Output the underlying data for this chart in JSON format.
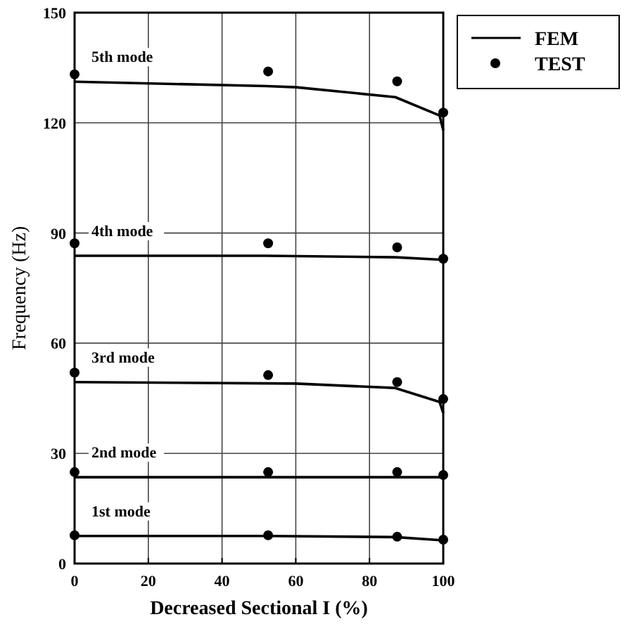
{
  "chart_data": {
    "type": "line",
    "xlabel": "Decreased Sectional I (%)",
    "ylabel": "Frequency (Hz)",
    "xlim": [
      0,
      100
    ],
    "ylim": [
      0,
      150
    ],
    "xticks": [
      0,
      20,
      40,
      60,
      80,
      100
    ],
    "yticks": [
      0,
      30,
      60,
      90,
      120,
      150
    ],
    "grid": true,
    "legend": "top right",
    "series": [
      {
        "name": "FEM",
        "color": "#000000",
        "marker": "none",
        "line_style": "solid",
        "x": [
          0,
          52,
          60,
          87,
          99,
          100
        ],
        "values": [
          131.2,
          130,
          129.7,
          127,
          122,
          118
        ]
      },
      {
        "color": "#000000",
        "marker": "none",
        "line_style": "solid",
        "x": [
          0,
          52,
          87,
          100
        ],
        "values": [
          83.8,
          83.8,
          83.4,
          82.7
        ]
      },
      {
        "color": "#000000",
        "marker": "none",
        "line_style": "solid",
        "x": [
          0,
          60,
          87,
          99,
          100
        ],
        "values": [
          49.4,
          49,
          47.8,
          44,
          41
        ]
      },
      {
        "color": "#000000",
        "marker": "none",
        "line_style": "solid",
        "x": [
          0,
          100
        ],
        "values": [
          23.5,
          23.5
        ]
      },
      {
        "color": "#000000",
        "marker": "none",
        "line_style": "solid",
        "x": [
          0,
          52,
          87,
          100
        ],
        "values": [
          7.5,
          7.5,
          7.2,
          6.3
        ]
      },
      {
        "name": "TEST",
        "type": "scatter",
        "color": "#000000",
        "marker": "circle",
        "x": [
          0,
          52.5,
          87.5,
          100
        ],
        "values": [
          133.2,
          134,
          131.3,
          122.8
        ]
      },
      {
        "type": "scatter",
        "color": "#000000",
        "marker": "circle",
        "x": [
          0,
          52.5,
          87.5,
          100
        ],
        "values": [
          87.2,
          87.2,
          86.1,
          83
        ]
      },
      {
        "type": "scatter",
        "color": "#000000",
        "marker": "circle",
        "x": [
          0,
          52.5,
          87.5,
          100
        ],
        "values": [
          52,
          51.3,
          49.4,
          44.8
        ]
      },
      {
        "type": "scatter",
        "color": "#000000",
        "marker": "circle",
        "x": [
          0,
          52.5,
          87.5,
          100
        ],
        "values": [
          24.9,
          24.9,
          24.9,
          24.1
        ]
      },
      {
        "type": "scatter",
        "color": "#000000",
        "marker": "circle",
        "x": [
          0,
          52.5,
          87.5,
          100
        ],
        "values": [
          7.7,
          7.7,
          7.3,
          6.5
        ]
      }
    ],
    "annotations": [
      "5th mode",
      "4th mode",
      "3rd mode",
      "2nd mode",
      "1st mode"
    ]
  }
}
